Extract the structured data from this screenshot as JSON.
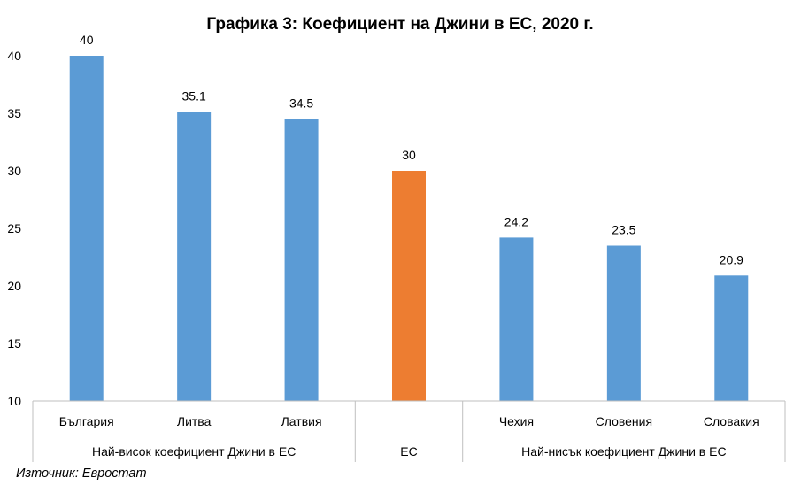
{
  "chart_data": {
    "type": "bar",
    "title": "Графика 3: Коефициент на Джини в ЕС, 2020 г.",
    "categories": [
      "България",
      "Литва",
      "Латвия",
      "ЕС",
      "Чехия",
      "Словения",
      "Словакия"
    ],
    "values": [
      40,
      35.1,
      34.5,
      30,
      24.2,
      23.5,
      20.9
    ],
    "data_labels": [
      "40",
      "35.1",
      "34.5",
      "30",
      "24.2",
      "23.5",
      "20.9"
    ],
    "bar_colors": [
      "#5b9bd5",
      "#5b9bd5",
      "#5b9bd5",
      "#ed7d31",
      "#5b9bd5",
      "#5b9bd5",
      "#5b9bd5"
    ],
    "groups": [
      {
        "label": "Най-висок коефициент Джини в ЕС",
        "count": 3
      },
      {
        "label": "ЕС",
        "count": 1
      },
      {
        "label": "Най-нисък коефициент Джини в ЕС",
        "count": 3
      }
    ],
    "ylim": [
      10,
      40
    ],
    "yticks": [
      "10",
      "15",
      "20",
      "25",
      "30",
      "35",
      "40"
    ],
    "grid": false,
    "legend": "none"
  },
  "source": "Източник: Евростат"
}
